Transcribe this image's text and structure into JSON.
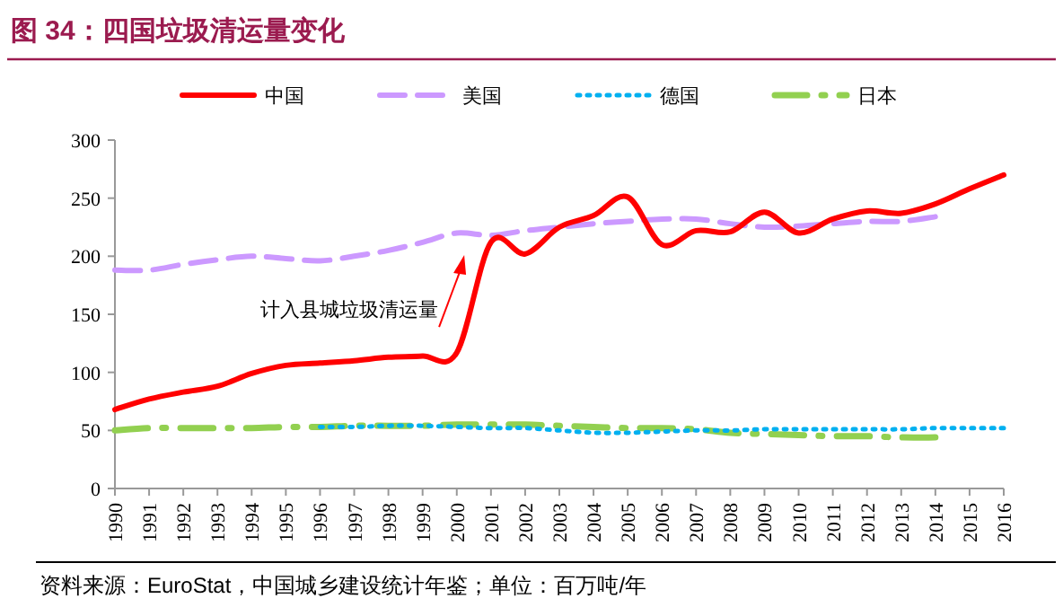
{
  "chart_data": {
    "type": "line",
    "title": "图 34：四国垃圾清运量变化",
    "x": [
      1990,
      1991,
      1992,
      1993,
      1994,
      1995,
      1996,
      1997,
      1998,
      1999,
      2000,
      2001,
      2002,
      2003,
      2004,
      2005,
      2006,
      2007,
      2008,
      2009,
      2010,
      2011,
      2012,
      2013,
      2014,
      2015,
      2016
    ],
    "series": [
      {
        "name": "中国",
        "color": "#ff0000",
        "line_style": "solid",
        "values": [
          68,
          77,
          83,
          88,
          99,
          106,
          108,
          110,
          113,
          114,
          117,
          212,
          202,
          225,
          235,
          251,
          210,
          222,
          221,
          238,
          220,
          232,
          239,
          237,
          245,
          258,
          270
        ]
      },
      {
        "name": "美国",
        "color": "#cc99ff",
        "line_style": "dashed",
        "x": [
          1990,
          1991,
          1992,
          1993,
          1994,
          1995,
          1996,
          1997,
          1998,
          1999,
          2000,
          2001,
          2002,
          2003,
          2004,
          2005,
          2006,
          2007,
          2008,
          2009,
          2010,
          2011,
          2012,
          2013,
          2014
        ],
        "values": [
          188,
          188,
          193,
          197,
          200,
          198,
          196,
          200,
          205,
          212,
          220,
          218,
          222,
          225,
          228,
          230,
          232,
          232,
          228,
          225,
          226,
          228,
          230,
          230,
          234
        ]
      },
      {
        "name": "德国",
        "color": "#00b0f0",
        "line_style": "dotted",
        "x": [
          1996,
          1997,
          1998,
          1999,
          2000,
          2001,
          2002,
          2003,
          2004,
          2005,
          2006,
          2007,
          2008,
          2009,
          2010,
          2011,
          2012,
          2013,
          2014,
          2015,
          2016
        ],
        "values": [
          53,
          53,
          54,
          54,
          53,
          52,
          52,
          50,
          48,
          48,
          49,
          50,
          50,
          51,
          51,
          51,
          51,
          51,
          52,
          52,
          52
        ]
      },
      {
        "name": "日本",
        "color": "#92d050",
        "line_style": "dashdot",
        "x": [
          1990,
          1991,
          1992,
          1993,
          1994,
          1995,
          1996,
          1997,
          1998,
          1999,
          2000,
          2001,
          2002,
          2003,
          2004,
          2005,
          2006,
          2007,
          2008,
          2009,
          2010,
          2011,
          2012,
          2013,
          2014
        ],
        "values": [
          50,
          52,
          52,
          52,
          52,
          53,
          53,
          54,
          54,
          54,
          55,
          55,
          55,
          54,
          53,
          52,
          52,
          51,
          48,
          47,
          46,
          45,
          45,
          44,
          44
        ]
      }
    ],
    "xlim": [
      1990,
      2016
    ],
    "xticks": [
      1990,
      1991,
      1992,
      1993,
      1994,
      1995,
      1996,
      1997,
      1998,
      1999,
      2000,
      2001,
      2002,
      2003,
      2004,
      2005,
      2006,
      2007,
      2008,
      2009,
      2010,
      2011,
      2012,
      2013,
      2014,
      2015,
      2016
    ],
    "ylim": [
      0,
      300
    ],
    "yticks": [
      0,
      50,
      100,
      150,
      200,
      250,
      300
    ],
    "grid": false,
    "legend": "top",
    "marker": "none",
    "annotations": [
      "计入县城垃圾清运量",
      "资料来源：EuroStat，中国城乡建设统计年鉴；单位：百万吨/年"
    ]
  }
}
